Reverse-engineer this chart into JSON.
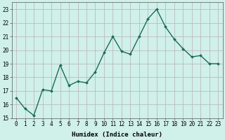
{
  "x": [
    0,
    1,
    2,
    3,
    4,
    5,
    6,
    7,
    8,
    9,
    10,
    11,
    12,
    13,
    14,
    15,
    16,
    17,
    18,
    19,
    20,
    21,
    22,
    23
  ],
  "y": [
    16.5,
    15.7,
    15.2,
    17.1,
    17.0,
    18.9,
    17.4,
    17.7,
    17.6,
    18.4,
    19.8,
    21.0,
    19.9,
    19.7,
    21.0,
    22.3,
    23.0,
    21.7,
    20.8,
    20.1,
    19.5,
    19.6,
    19.0,
    19.0
  ],
  "line_color": "#1a6b5a",
  "marker": "D",
  "marker_size": 2.0,
  "bg_color": "#d0f0ea",
  "grid_color": "#b8b0b8",
  "xlabel": "Humidex (Indice chaleur)",
  "ylim": [
    15,
    23.5
  ],
  "xlim": [
    -0.5,
    23.5
  ],
  "yticks": [
    15,
    16,
    17,
    18,
    19,
    20,
    21,
    22,
    23
  ],
  "xticks": [
    0,
    1,
    2,
    3,
    4,
    5,
    6,
    7,
    8,
    9,
    10,
    11,
    12,
    13,
    14,
    15,
    16,
    17,
    18,
    19,
    20,
    21,
    22,
    23
  ],
  "xlabel_fontsize": 6.5,
  "tick_fontsize": 5.5,
  "line_width": 1.0
}
